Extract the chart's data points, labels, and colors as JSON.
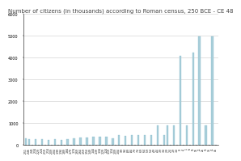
{
  "title": "Number of citizens (in thousands) according to Roman census, 250 BCE - CE 48",
  "title_fontsize": 5.0,
  "bar_color": "#aacfda",
  "bar_color_dark": "#7ab5c8",
  "background_color": "#ffffff",
  "ylim": [
    0,
    6000
  ],
  "yticks": [
    0,
    1000,
    2000,
    3000,
    4000,
    5000,
    6000
  ],
  "years": [
    -251,
    -246,
    -241,
    -234,
    -229,
    -224,
    -219,
    -214,
    -209,
    -204,
    -199,
    -194,
    -189,
    -184,
    -179,
    -174,
    -169,
    -164,
    -159,
    -154,
    -149,
    -144,
    -139,
    -134,
    -129,
    -124,
    -119,
    -114,
    -109,
    -104,
    -99,
    -94,
    -89,
    -84,
    -79,
    -74,
    -69,
    -64,
    -59,
    -54,
    -49,
    -44,
    -39,
    -34,
    -29,
    -24,
    -19,
    -14,
    -9,
    -4,
    1,
    6,
    11,
    16,
    21,
    26,
    31,
    36,
    41,
    46
  ],
  "values": [
    290,
    270,
    0,
    270,
    0,
    260,
    0,
    214,
    0,
    258,
    0,
    243,
    0,
    269,
    0,
    312,
    0,
    325,
    0,
    328,
    0,
    394,
    0,
    394,
    0,
    394,
    0,
    300,
    0,
    463,
    0,
    400,
    0,
    463,
    0,
    463,
    0,
    463,
    0,
    463,
    0,
    900,
    0,
    463,
    900,
    0,
    900,
    0,
    4063,
    0,
    900,
    0,
    4233,
    0,
    4963,
    0,
    900,
    0,
    4963,
    0
  ],
  "xtick_labels": [
    "-251",
    "-246",
    "-241",
    "-234",
    "-229",
    "-224",
    "-219",
    "-214",
    "-209",
    "-204",
    "-199",
    "-194",
    "-189",
    "-184",
    "-179",
    "-174",
    "-169",
    "-164",
    "-159",
    "-154",
    "-149",
    "-144",
    "-139",
    "-134",
    "-129",
    "-124",
    "-119",
    "-114",
    "-109",
    "-104",
    "-99",
    "-94",
    "-89",
    "-84",
    "-79",
    "-74",
    "-69",
    "-64",
    "-59",
    "-54",
    "-49",
    "-44",
    "-39",
    "-34",
    "-29",
    "-24",
    "-19",
    "-14",
    "-9",
    "-4",
    "1",
    "6",
    "11",
    "16",
    "21",
    "26",
    "31",
    "36",
    "41",
    "46"
  ]
}
